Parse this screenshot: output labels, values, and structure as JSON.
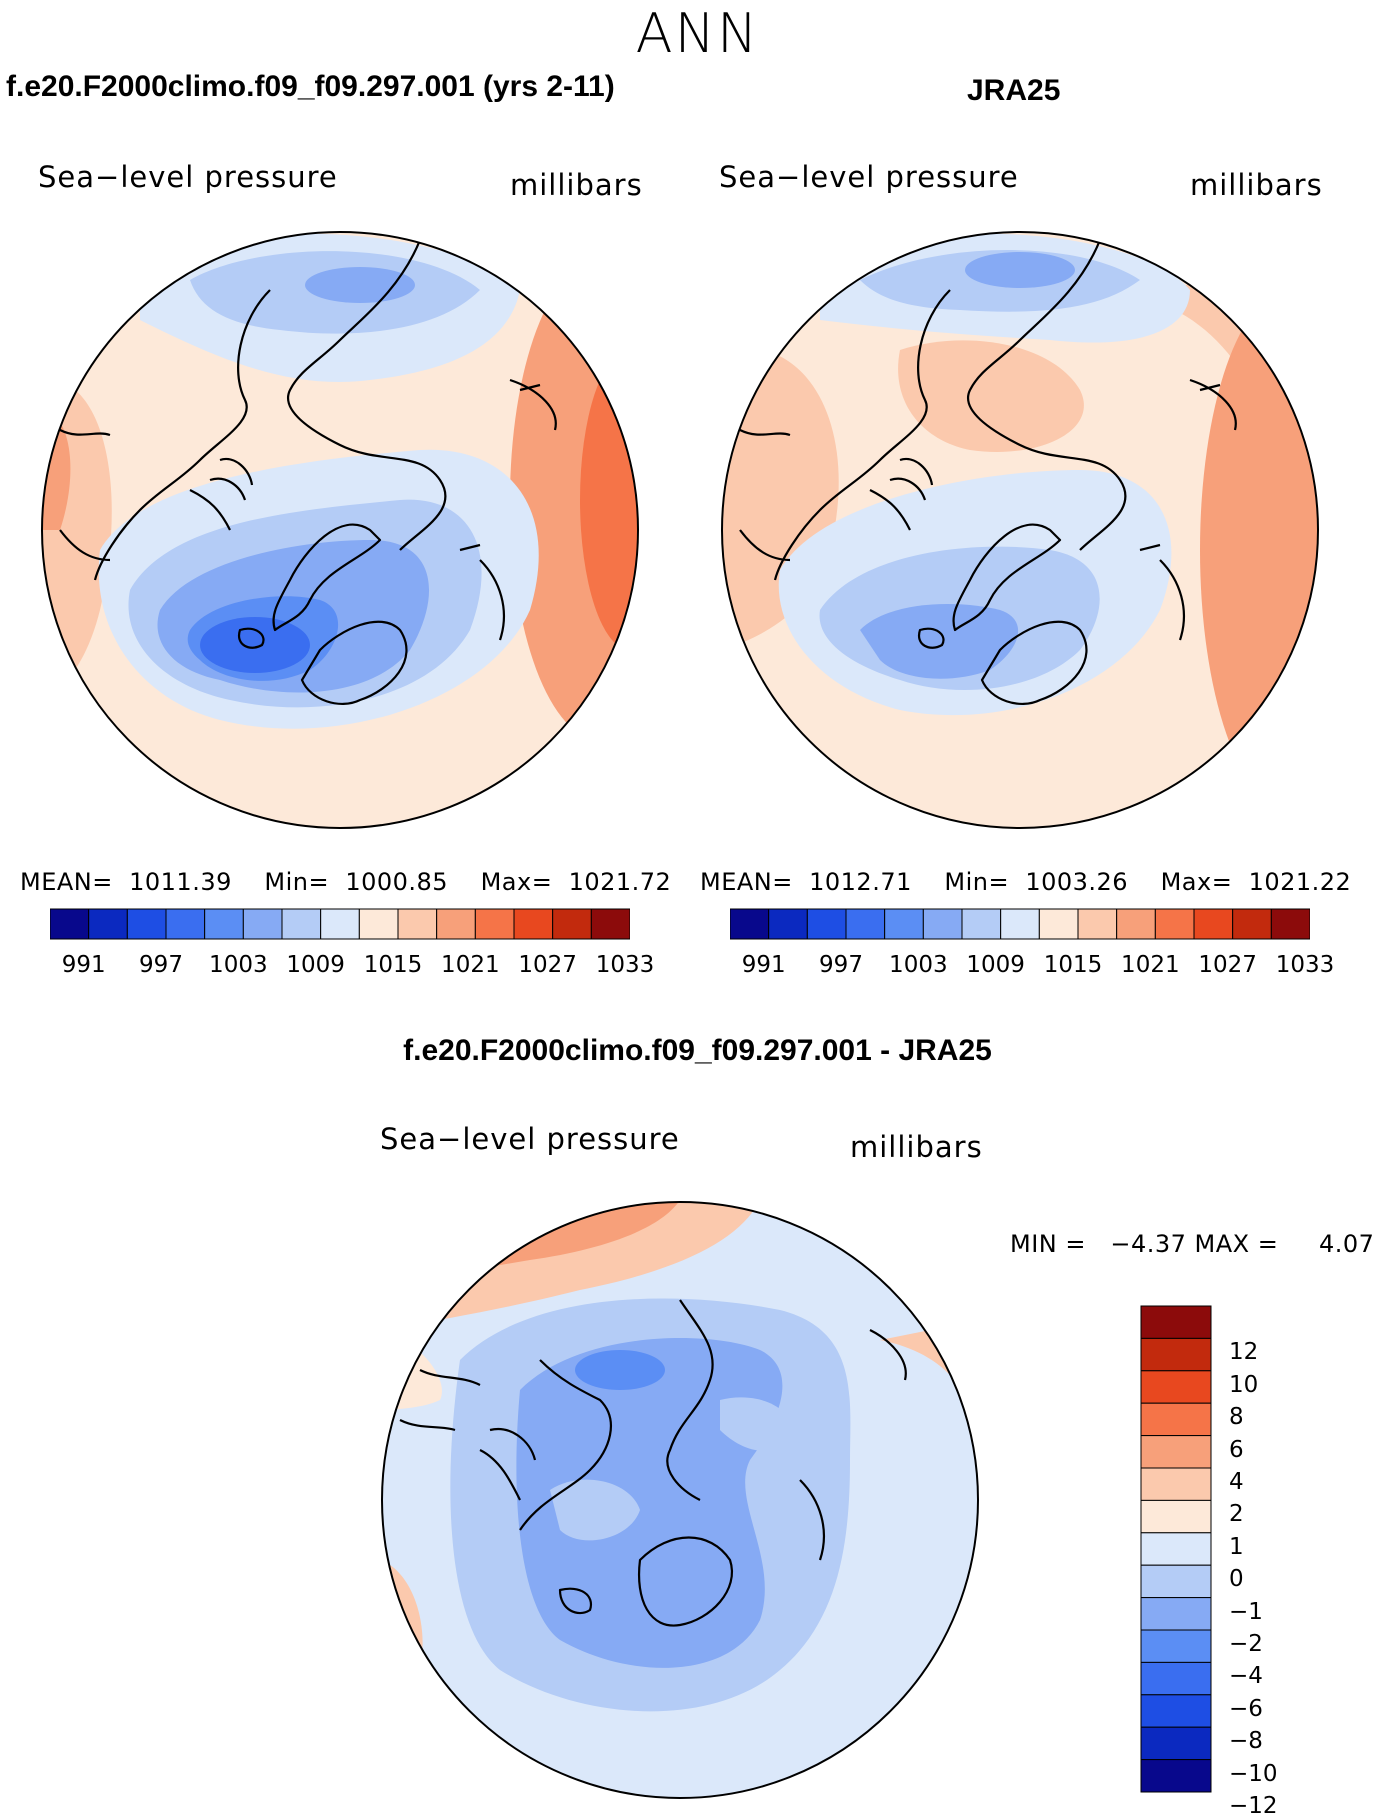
{
  "figure": {
    "title": "ANN",
    "diff_title": "f.e20.F2000climo.f09_f09.297.001 - JRA25"
  },
  "panels": [
    {
      "title": "f.e20.F2000climo.f09_f09.297.001 (yrs 2-11)",
      "left_label": "Sea−level pressure",
      "right_label": "millibars",
      "stats_text": "MEAN=  1011.39    Min=  1000.85    Max=  1021.72",
      "colorbar": {
        "colors": [
          "#08088c",
          "#0b29c0",
          "#1e4ee4",
          "#3a6ef0",
          "#5b8ef4",
          "#86aaf4",
          "#b4ccf6",
          "#dbe8fa",
          "#fde9d9",
          "#fbc9ad",
          "#f7a07a",
          "#f57448",
          "#e8481f",
          "#c22a0d",
          "#8c0b0b"
        ],
        "tick_labels": [
          "991",
          "997",
          "1003",
          "1009",
          "1015",
          "1021",
          "1027",
          "1033"
        ]
      }
    },
    {
      "title": "JRA25",
      "left_label": "Sea−level pressure",
      "right_label": "millibars",
      "stats_text": "MEAN=  1012.71    Min=  1003.26    Max=  1021.22",
      "colorbar": {
        "colors": [
          "#08088c",
          "#0b29c0",
          "#1e4ee4",
          "#3a6ef0",
          "#5b8ef4",
          "#86aaf4",
          "#b4ccf6",
          "#dbe8fa",
          "#fde9d9",
          "#fbc9ad",
          "#f7a07a",
          "#f57448",
          "#e8481f",
          "#c22a0d",
          "#8c0b0b"
        ],
        "tick_labels": [
          "991",
          "997",
          "1003",
          "1009",
          "1015",
          "1021",
          "1027",
          "1033"
        ]
      }
    }
  ],
  "diff_panel": {
    "left_label": "Sea−level pressure",
    "right_label": "millibars",
    "stats_text": "MIN =   −4.37 MAX =     4.07",
    "colorbar": {
      "colors": [
        "#8c0b0b",
        "#c22a0d",
        "#e8481f",
        "#f57448",
        "#f7a07a",
        "#fbc9ad",
        "#fde9d9",
        "#dbe8fa",
        "#b4ccf6",
        "#86aaf4",
        "#5b8ef4",
        "#3a6ef0",
        "#1e4ee4",
        "#0b29c0",
        "#08088c"
      ],
      "tick_labels": [
        "12",
        "10",
        "8",
        "6",
        "4",
        "2",
        "1",
        "0",
        "−1",
        "−2",
        "−4",
        "−6",
        "−8",
        "−10",
        "−12"
      ]
    }
  }
}
